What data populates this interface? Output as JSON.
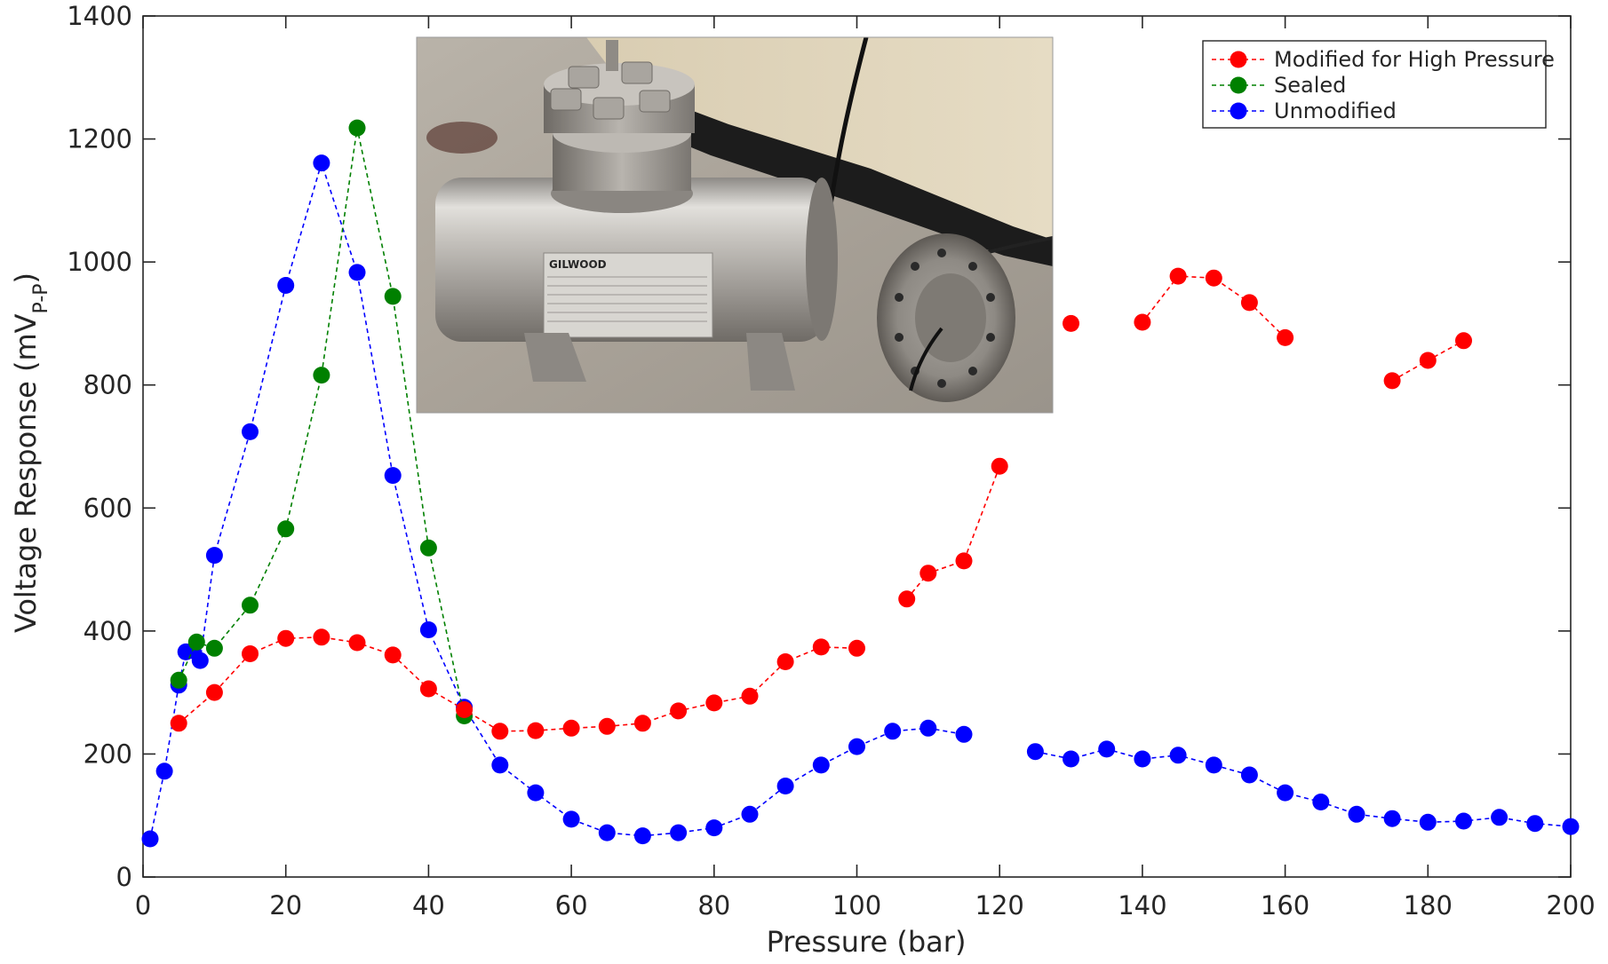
{
  "chart_data": {
    "type": "scatter",
    "title": "",
    "xlabel": "Pressure (bar)",
    "ylabel": "Voltage Response (mV",
    "ylabel_subscript": "P-P",
    "ylabel_close": ")",
    "xlim": [
      0,
      200
    ],
    "ylim": [
      0,
      1400
    ],
    "x_ticks": [
      0,
      20,
      40,
      60,
      80,
      100,
      120,
      140,
      160,
      180,
      200
    ],
    "y_ticks": [
      0,
      200,
      400,
      600,
      800,
      1000,
      1200,
      1400
    ],
    "grid": false,
    "legend_position": "top-right",
    "series": [
      {
        "name": "Modified for High Pressure",
        "color": "#ff0000",
        "segments": [
          {
            "x": [
              5,
              10,
              15,
              20,
              25,
              30,
              35,
              40,
              45,
              50,
              55,
              60,
              65,
              70,
              75,
              80,
              85,
              90,
              95,
              100
            ],
            "y": [
              250,
              300,
              363,
              388,
              390,
              381,
              361,
              306,
              272,
              237,
              238,
              242,
              245,
              250,
              270,
              283,
              294,
              350,
              374,
              372
            ]
          },
          {
            "x": [
              107,
              110,
              115,
              120
            ],
            "y": [
              452,
              494,
              514,
              668
            ]
          },
          {
            "x": [
              130
            ],
            "y": [
              900
            ]
          },
          {
            "x": [
              140,
              145,
              150,
              155,
              160
            ],
            "y": [
              902,
              977,
              974,
              934,
              877
            ]
          },
          {
            "x": [
              175,
              180,
              185
            ],
            "y": [
              807,
              840,
              872
            ]
          }
        ]
      },
      {
        "name": "Sealed",
        "color": "#008000",
        "segments": [
          {
            "x": [
              5,
              7.5,
              10,
              15,
              20,
              25,
              30,
              35,
              40,
              45
            ],
            "y": [
              320,
              382,
              372,
              442,
              566,
              816,
              1218,
              944,
              535,
              262
            ]
          }
        ]
      },
      {
        "name": "Unmodified",
        "color": "#0000ff",
        "segments": [
          {
            "x": [
              1,
              3,
              5,
              6,
              7,
              8,
              10,
              15,
              20,
              25,
              30,
              35,
              40,
              45,
              50,
              55,
              60,
              65,
              70,
              75,
              80,
              85,
              90,
              95,
              100,
              105,
              110,
              115
            ],
            "y": [
              62,
              172,
              312,
              366,
              368,
              352,
              523,
              724,
              962,
              1161,
              983,
              653,
              402,
              276,
              182,
              137,
              94,
              72,
              67,
              72,
              80,
              102,
              148,
              182,
              212,
              237,
              242,
              232
            ]
          },
          {
            "x": [
              125,
              130,
              135,
              140,
              145,
              150,
              155,
              160,
              165,
              170,
              175,
              180,
              185,
              190,
              195,
              200
            ],
            "y": [
              204,
              192,
              208,
              192,
              198,
              182,
              166,
              137,
              122,
              102,
              95,
              89,
              91,
              97,
              87,
              82
            ]
          }
        ]
      }
    ]
  },
  "inset_photo": {
    "nameplate_brand": "GILWOOD"
  }
}
